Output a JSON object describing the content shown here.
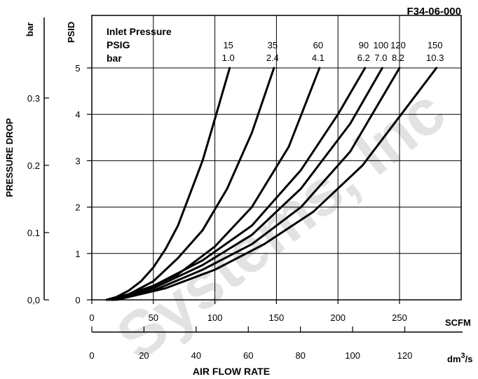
{
  "figure_id": "F34-06-000",
  "watermark": "Systems, Inc",
  "chart_data": {
    "type": "line",
    "xlabel": "AIR FLOW RATE",
    "x_unit_primary": "SCFM",
    "x_unit_secondary": "dm",
    "x_unit_secondary_sup": "3",
    "x_unit_secondary_suffix": "/s",
    "ylabel": "PRESSURE DROP",
    "y_unit_primary": "PSID",
    "y_unit_secondary": "bar",
    "xlim": [
      0,
      300
    ],
    "ylim": [
      0,
      5
    ],
    "x_ticks": [
      "0",
      "50",
      "100",
      "150",
      "200",
      "250"
    ],
    "x_secondary_ticks": [
      "0",
      "20",
      "40",
      "60",
      "80",
      "100",
      "120"
    ],
    "y_ticks": [
      "0",
      "1",
      "2",
      "3",
      "4",
      "5"
    ],
    "y_secondary_ticks": [
      "0,0",
      "0.1",
      "0.2",
      "0.3"
    ],
    "legend": {
      "title": "Inlet Pressure",
      "row1_label": "PSIG",
      "row2_label": "bar"
    },
    "series": [
      {
        "psig": "15",
        "bar": "1.0",
        "x": [
          12,
          20,
          30,
          40,
          50,
          60,
          70,
          80,
          90,
          100,
          112
        ],
        "y": [
          0,
          0.06,
          0.2,
          0.4,
          0.7,
          1.1,
          1.6,
          2.3,
          3.0,
          3.9,
          5.0
        ]
      },
      {
        "psig": "35",
        "bar": "2.4",
        "x": [
          12,
          30,
          50,
          70,
          90,
          110,
          130,
          148
        ],
        "y": [
          0,
          0.12,
          0.4,
          0.9,
          1.5,
          2.4,
          3.6,
          5.0
        ]
      },
      {
        "psig": "60",
        "bar": "4.1",
        "x": [
          14,
          40,
          70,
          100,
          130,
          160,
          185
        ],
        "y": [
          0,
          0.18,
          0.55,
          1.15,
          2.0,
          3.3,
          5.0
        ]
      },
      {
        "psig": "90",
        "bar": "6.2",
        "x": [
          16,
          50,
          90,
          130,
          170,
          200,
          222
        ],
        "y": [
          0,
          0.3,
          0.85,
          1.6,
          2.8,
          4.0,
          5.0
        ]
      },
      {
        "psig": "100",
        "bar": "7.0",
        "x": [
          17,
          50,
          90,
          130,
          170,
          210,
          236
        ],
        "y": [
          0,
          0.25,
          0.75,
          1.4,
          2.4,
          3.8,
          5.0
        ]
      },
      {
        "psig": "120",
        "bar": "8.2",
        "x": [
          18,
          50,
          90,
          130,
          170,
          210,
          250
        ],
        "y": [
          0,
          0.2,
          0.65,
          1.2,
          2.0,
          3.2,
          5.0
        ]
      },
      {
        "psig": "150",
        "bar": "10.3",
        "x": [
          20,
          60,
          100,
          140,
          180,
          220,
          260,
          280
        ],
        "y": [
          0,
          0.25,
          0.65,
          1.2,
          1.9,
          2.9,
          4.3,
          5.0
        ]
      }
    ]
  }
}
